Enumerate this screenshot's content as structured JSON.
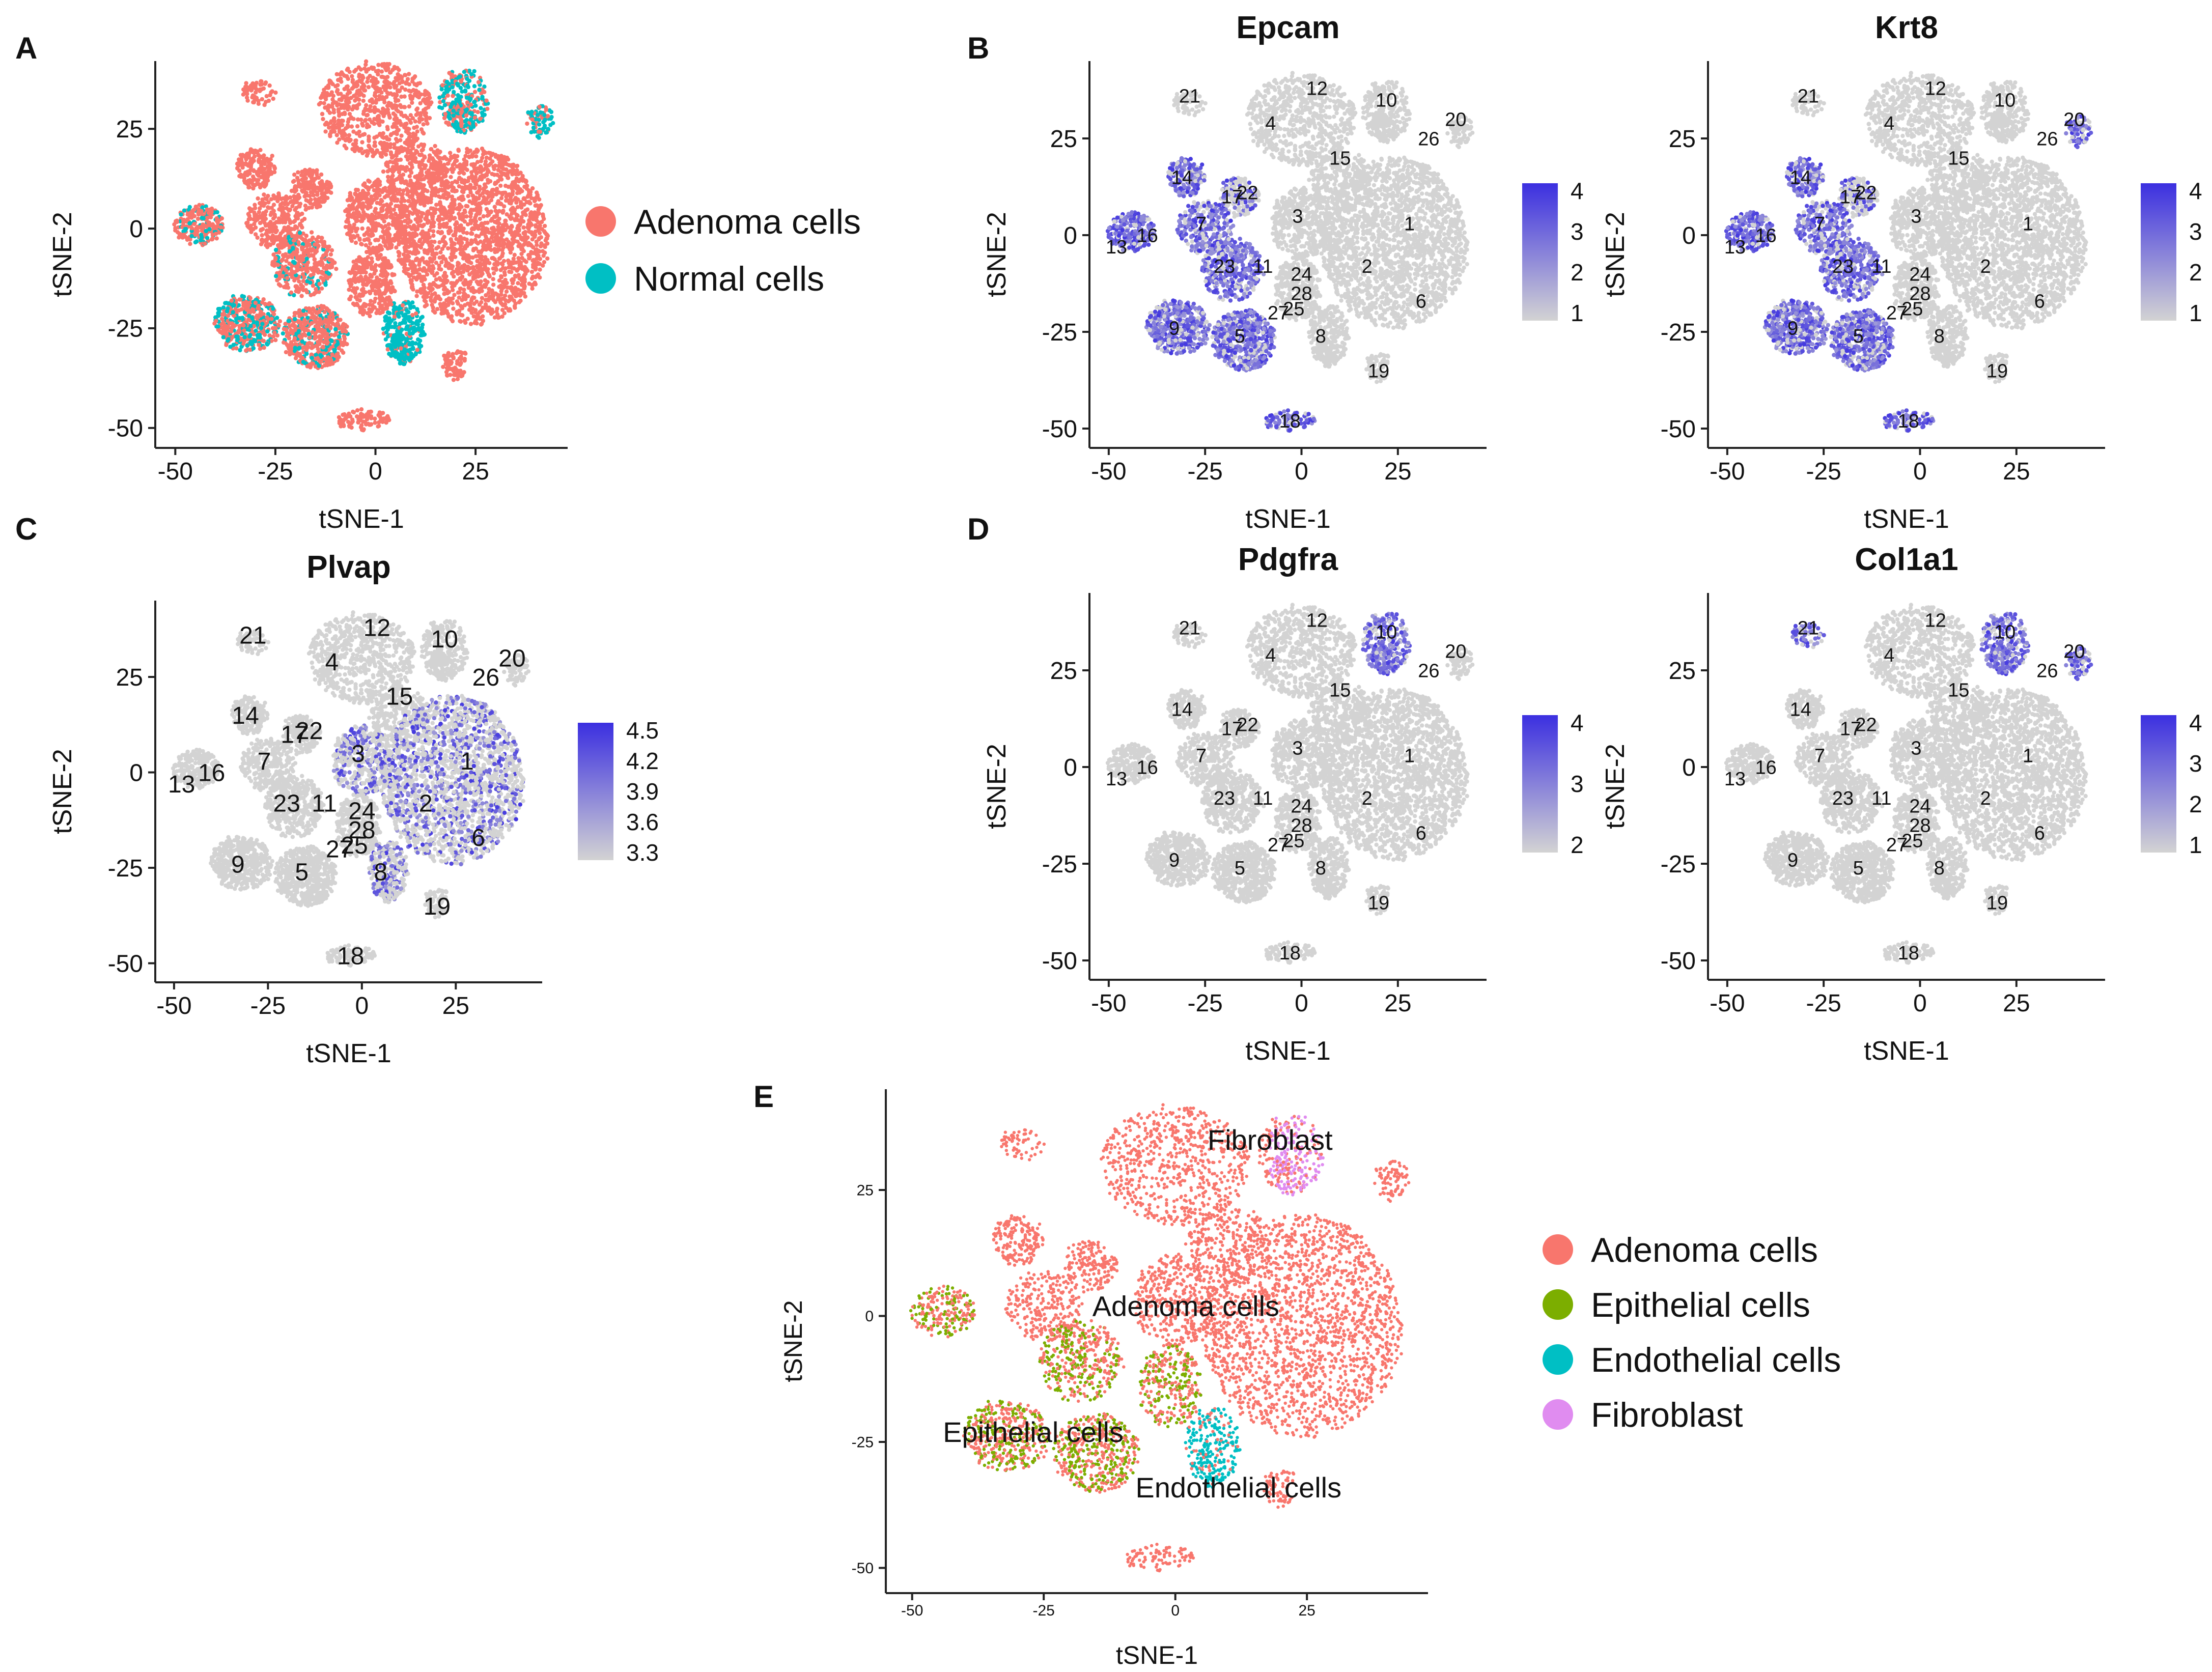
{
  "figure": {
    "panel_letters": [
      "A",
      "B",
      "C",
      "D",
      "E"
    ]
  },
  "chart_data": [
    {
      "id": "A",
      "type": "scatter",
      "title": "",
      "xlabel": "tSNE-1",
      "ylabel": "tSNE-2",
      "xlim": [
        -55,
        48
      ],
      "ylim": [
        -55,
        42
      ],
      "xticks": [
        -50,
        -25,
        0,
        25
      ],
      "yticks": [
        25,
        0,
        -25,
        -50
      ],
      "legend": [
        {
          "label": "Adenoma cells",
          "color": "#f8766d"
        },
        {
          "label": "Normal cells",
          "color": "#00bfc4"
        }
      ],
      "regions": [
        {
          "group": "Normal cells",
          "cx": 22,
          "cy": 30,
          "rx": 6,
          "ry": 8
        },
        {
          "group": "Normal cells",
          "cx": 10,
          "cy": -24,
          "rx": 5,
          "ry": 8
        },
        {
          "group": "Normal cells",
          "cx": -45,
          "cy": 5,
          "rx": 4,
          "ry": 3
        },
        {
          "group": "Normal cells",
          "cx": -30,
          "cy": -24,
          "rx": 6,
          "ry": 7
        },
        {
          "group": "Normal cells",
          "cx": -18,
          "cy": -10,
          "rx": 3,
          "ry": 6
        },
        {
          "group": "Normal cells",
          "cx": 42,
          "cy": 28,
          "rx": 2,
          "ry": 3
        }
      ]
    },
    {
      "id": "B1",
      "type": "scatter",
      "title": "Epcam",
      "xlabel": "tSNE-1",
      "ylabel": "tSNE-2",
      "xlim": [
        -55,
        48
      ],
      "ylim": [
        -55,
        45
      ],
      "xticks": [
        -50,
        -25,
        0,
        25
      ],
      "yticks": [
        25,
        0,
        -25,
        -50
      ],
      "colorbar": {
        "ticks": [
          "4",
          "3",
          "2",
          "1"
        ],
        "low": "#d3d3d3",
        "high": "#3b2fe0"
      },
      "cluster_labels": [
        "21",
        "12",
        "10",
        "20",
        "4",
        "26",
        "15",
        "14",
        "17",
        "22",
        "3",
        "1",
        "7",
        "16",
        "13",
        "23",
        "11",
        "24",
        "2",
        "6",
        "28",
        "25",
        "27",
        "9",
        "5",
        "8",
        "19",
        "18"
      ],
      "highlight": "left clusters 5, 7, 9, 11, 13, 14, 16, 18, 23"
    },
    {
      "id": "B2",
      "type": "scatter",
      "title": "Krt8",
      "xlabel": "tSNE-1",
      "ylabel": "tSNE-2",
      "xlim": [
        -55,
        48
      ],
      "ylim": [
        -55,
        45
      ],
      "xticks": [
        -50,
        -25,
        0,
        25
      ],
      "yticks": [
        25,
        0,
        -25,
        -50
      ],
      "colorbar": {
        "ticks": [
          "4",
          "3",
          "2",
          "1"
        ],
        "low": "#d3d3d3",
        "high": "#3b2fe0"
      },
      "cluster_labels": [
        "21",
        "12",
        "10",
        "20",
        "4",
        "26",
        "15",
        "14",
        "17",
        "22",
        "3",
        "1",
        "7",
        "16",
        "13",
        "23",
        "11",
        "24",
        "2",
        "6",
        "28",
        "25",
        "27",
        "9",
        "5",
        "8",
        "19",
        "18"
      ],
      "highlight": "left clusters 5, 7, 9, 11, 13, 14, 16, 17, 18, 20, 23"
    },
    {
      "id": "C",
      "type": "scatter",
      "title": "Plvap",
      "xlabel": "tSNE-1",
      "ylabel": "tSNE-2",
      "xlim": [
        -55,
        48
      ],
      "ylim": [
        -55,
        45
      ],
      "xticks": [
        -50,
        -25,
        0,
        25
      ],
      "yticks": [
        25,
        0,
        -25,
        -50
      ],
      "colorbar": {
        "ticks": [
          "4.5",
          "4.2",
          "3.9",
          "3.6",
          "3.3"
        ],
        "low": "#d3d3d3",
        "high": "#3b2fe0"
      },
      "cluster_labels": [
        "21",
        "12",
        "10",
        "20",
        "4",
        "26",
        "15",
        "14",
        "17",
        "22",
        "3",
        "1",
        "7",
        "16",
        "13",
        "23",
        "11",
        "24",
        "2",
        "6",
        "28",
        "25",
        "27",
        "9",
        "5",
        "8",
        "19",
        "18"
      ],
      "highlight": "scattered over clusters 1, 2, 3, 6, 8"
    },
    {
      "id": "D1",
      "type": "scatter",
      "title": "Pdgfra",
      "xlabel": "tSNE-1",
      "ylabel": "tSNE-2",
      "xlim": [
        -55,
        48
      ],
      "ylim": [
        -55,
        45
      ],
      "xticks": [
        -50,
        -25,
        0,
        25
      ],
      "yticks": [
        25,
        0,
        -25,
        -50
      ],
      "colorbar": {
        "ticks": [
          "4",
          "3",
          "2"
        ],
        "low": "#d3d3d3",
        "high": "#3b2fe0"
      },
      "cluster_labels": [
        "21",
        "12",
        "10",
        "20",
        "4",
        "26",
        "15",
        "14",
        "17",
        "22",
        "3",
        "1",
        "7",
        "16",
        "13",
        "23",
        "11",
        "24",
        "2",
        "6",
        "28",
        "25",
        "27",
        "9",
        "5",
        "8",
        "19",
        "18"
      ],
      "highlight": "cluster 10"
    },
    {
      "id": "D2",
      "type": "scatter",
      "title": "Col1a1",
      "xlabel": "tSNE-1",
      "ylabel": "tSNE-2",
      "xlim": [
        -55,
        48
      ],
      "ylim": [
        -55,
        45
      ],
      "xticks": [
        -50,
        -25,
        0,
        25
      ],
      "yticks": [
        25,
        0,
        -25,
        -50
      ],
      "colorbar": {
        "ticks": [
          "4",
          "3",
          "2",
          "1"
        ],
        "low": "#d3d3d3",
        "high": "#3b2fe0"
      },
      "cluster_labels": [
        "21",
        "12",
        "10",
        "20",
        "4",
        "26",
        "15",
        "14",
        "17",
        "22",
        "3",
        "1",
        "7",
        "16",
        "13",
        "23",
        "11",
        "24",
        "2",
        "6",
        "28",
        "25",
        "27",
        "9",
        "5",
        "8",
        "19",
        "18"
      ],
      "highlight": "clusters 10, 20, 21"
    },
    {
      "id": "E",
      "type": "scatter",
      "title": "",
      "xlabel": "tSNE-1",
      "ylabel": "tSNE-2",
      "xlim": [
        -55,
        48
      ],
      "ylim": [
        -55,
        45
      ],
      "xticks": [
        -50,
        -25,
        0,
        25
      ],
      "yticks": [
        25,
        0,
        -25,
        -50
      ],
      "legend": [
        {
          "label": "Adenoma cells",
          "color": "#f8766d"
        },
        {
          "label": "Epithelial cells",
          "color": "#7cae00"
        },
        {
          "label": "Endothelial cells",
          "color": "#00bfc4"
        },
        {
          "label": "Fibroblast",
          "color": "#e08cf0"
        }
      ],
      "annotations": [
        {
          "text": "Fibroblast",
          "x": 18,
          "y": 35
        },
        {
          "text": "Adenoma cells",
          "x": 2,
          "y": 2
        },
        {
          "text": "Epithelial cells",
          "x": -27,
          "y": -23
        },
        {
          "text": "Endothelial cells",
          "x": 12,
          "y": -34
        }
      ]
    }
  ]
}
